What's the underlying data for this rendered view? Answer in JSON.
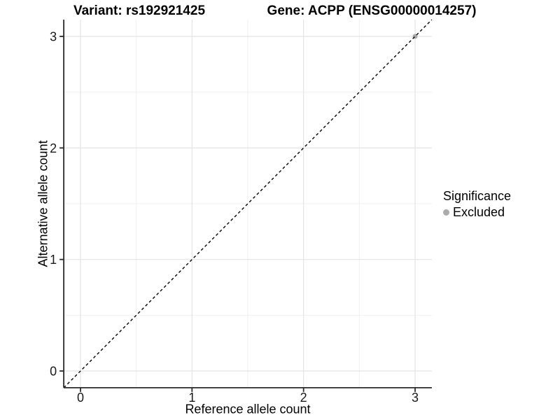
{
  "titles": {
    "left": "Variant: rs192921425",
    "right": "Gene: ACPP (ENSG00000014257)"
  },
  "axes": {
    "x": {
      "label": "Reference allele count"
    },
    "y": {
      "label": "Alternative allele count"
    }
  },
  "legend": {
    "title": "Significance",
    "items": [
      {
        "label": "Excluded",
        "color": "#ababab"
      }
    ]
  },
  "chart_data": {
    "type": "scatter",
    "title": "Variant: rs192921425 | Gene: ACPP (ENSG00000014257)",
    "xlabel": "Reference allele count",
    "ylabel": "Alternative allele count",
    "xlim": [
      -0.15,
      3.15
    ],
    "ylim": [
      -0.15,
      3.15
    ],
    "x_ticks": [
      0,
      1,
      2,
      3
    ],
    "x_minor_ticks": [
      0.5,
      1.5,
      2.5
    ],
    "y_ticks": [
      0,
      1,
      2,
      3
    ],
    "y_minor_ticks": [
      0.5,
      1.5,
      2.5
    ],
    "grid": true,
    "legend_position": "right",
    "legend_title": "Significance",
    "series": [
      {
        "name": "Excluded",
        "color": "#ababab",
        "points": [
          {
            "x": 3,
            "y": 3
          }
        ]
      }
    ],
    "reference_line": {
      "type": "identity",
      "slope": 1,
      "intercept": 0,
      "style": "dashed",
      "color": "#000000"
    }
  },
  "colors": {
    "background": "#ffffff",
    "grid_major": "#e4e4e4",
    "grid_minor": "#efefef",
    "axis": "#2b2b2b",
    "tick_text": "#1a1a1a"
  }
}
